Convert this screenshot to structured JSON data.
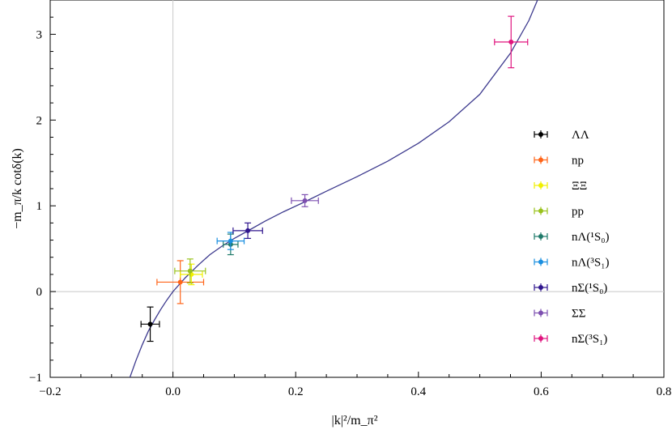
{
  "chart_data": {
    "type": "scatter",
    "title": "",
    "xlabel": "|k|²/m_π²",
    "ylabel": "−m_π/k cotδ(k)",
    "xlim": [
      -0.2,
      0.8
    ],
    "ylim": [
      -1,
      3.4
    ],
    "x_ticks": [
      -0.2,
      0.0,
      0.2,
      0.4,
      0.6,
      0.8
    ],
    "x_tick_labels": [
      "−0.2",
      "0.0",
      "0.2",
      "0.4",
      "0.6",
      "0.8"
    ],
    "y_ticks": [
      -1,
      0,
      1,
      2,
      3
    ],
    "y_tick_labels": [
      "−1",
      "0",
      "1",
      "2",
      "3"
    ],
    "reference_lines": {
      "x": 0,
      "y": 0
    },
    "curve": {
      "color": "#3d3a8e",
      "points": [
        [
          -0.07,
          -1.0
        ],
        [
          -0.06,
          -0.8
        ],
        [
          -0.05,
          -0.62
        ],
        [
          -0.04,
          -0.46
        ],
        [
          -0.03,
          -0.33
        ],
        [
          -0.02,
          -0.21
        ],
        [
          -0.01,
          -0.1
        ],
        [
          0.0,
          0.0
        ],
        [
          0.02,
          0.16
        ],
        [
          0.04,
          0.3
        ],
        [
          0.06,
          0.43
        ],
        [
          0.08,
          0.53
        ],
        [
          0.1,
          0.62
        ],
        [
          0.12,
          0.7
        ],
        [
          0.15,
          0.82
        ],
        [
          0.18,
          0.93
        ],
        [
          0.21,
          1.03
        ],
        [
          0.25,
          1.17
        ],
        [
          0.3,
          1.34
        ],
        [
          0.35,
          1.52
        ],
        [
          0.4,
          1.73
        ],
        [
          0.45,
          1.98
        ],
        [
          0.5,
          2.3
        ],
        [
          0.55,
          2.78
        ],
        [
          0.58,
          3.16
        ],
        [
          0.6,
          3.5
        ]
      ]
    },
    "series": [
      {
        "name": "ΛΛ",
        "color": "#000000",
        "x": -0.037,
        "y": -0.38,
        "xerr": 0.015,
        "yerr": 0.2
      },
      {
        "name": "np",
        "color": "#ff6418",
        "x": 0.012,
        "y": 0.11,
        "xerr": 0.038,
        "yerr": 0.25
      },
      {
        "name": "ΞΞ",
        "color": "#f0f000",
        "x": 0.03,
        "y": 0.2,
        "xerr": 0.018,
        "yerr": 0.12
      },
      {
        "name": "pp",
        "color": "#99c21c",
        "x": 0.028,
        "y": 0.24,
        "xerr": 0.025,
        "yerr": 0.14
      },
      {
        "name": "nΛ(¹S₀)",
        "color": "#1f7a6a",
        "x": 0.094,
        "y": 0.55,
        "xerr": 0.012,
        "yerr": 0.12
      },
      {
        "name": "nΛ(³S₁)",
        "color": "#1a8fe0",
        "x": 0.094,
        "y": 0.59,
        "xerr": 0.022,
        "yerr": 0.1
      },
      {
        "name": "nΣ(¹S₀)",
        "color": "#30168e",
        "x": 0.122,
        "y": 0.71,
        "xerr": 0.024,
        "yerr": 0.09
      },
      {
        "name": "ΣΣ",
        "color": "#7d4fb0",
        "x": 0.215,
        "y": 1.06,
        "xerr": 0.022,
        "yerr": 0.07
      },
      {
        "name": "nΣ(³S₁)",
        "color": "#e0147e",
        "x": 0.551,
        "y": 2.91,
        "xerr": 0.027,
        "yerr": 0.3
      }
    ],
    "legend_position": "right-center"
  }
}
